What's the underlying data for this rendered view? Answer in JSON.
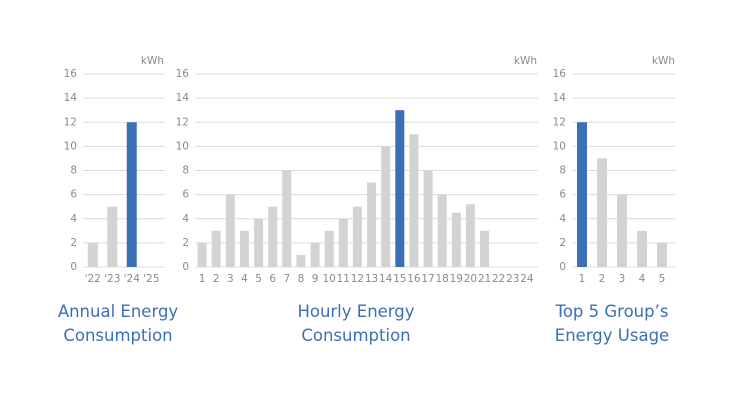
{
  "chart_data": [
    {
      "type": "bar",
      "title": "Annual Energy Consumption",
      "unit": "kWh",
      "categories": [
        "'22",
        "'23",
        "'24",
        "'25"
      ],
      "values": [
        2,
        5,
        12,
        null
      ],
      "colors": [
        "#d3d3d3",
        "#d3d3d3",
        "#3b6fb6",
        "#d3d3d3"
      ],
      "ylim": [
        0,
        16
      ],
      "yticks": [
        0,
        2,
        4,
        6,
        8,
        10,
        12,
        14,
        16
      ],
      "grid": true
    },
    {
      "type": "bar",
      "title": "Hourly Energy Consumption",
      "unit": "kWh",
      "categories": [
        "1",
        "2",
        "3",
        "4",
        "5",
        "6",
        "7",
        "8",
        "9",
        "10",
        "11",
        "12",
        "13",
        "14",
        "15",
        "16",
        "17",
        "18",
        "19",
        "20",
        "21",
        "22",
        "23",
        "24"
      ],
      "values": [
        2,
        3,
        6,
        3,
        4,
        5,
        8,
        1,
        2,
        3,
        4,
        5,
        7,
        10,
        13,
        11,
        8,
        6,
        4.5,
        5.2,
        3,
        null,
        null,
        null
      ],
      "colors": [
        "#d3d3d3",
        "#d3d3d3",
        "#d3d3d3",
        "#d3d3d3",
        "#d3d3d3",
        "#d3d3d3",
        "#d3d3d3",
        "#d3d3d3",
        "#d3d3d3",
        "#d3d3d3",
        "#d3d3d3",
        "#d3d3d3",
        "#d3d3d3",
        "#d3d3d3",
        "#3b6fb6",
        "#d3d3d3",
        "#d3d3d3",
        "#d3d3d3",
        "#d3d3d3",
        "#d3d3d3",
        "#d3d3d3",
        "#d3d3d3",
        "#d3d3d3",
        "#d3d3d3"
      ],
      "ylim": [
        0,
        16
      ],
      "yticks": [
        0,
        2,
        4,
        6,
        8,
        10,
        12,
        14,
        16
      ],
      "grid": true
    },
    {
      "type": "bar",
      "title": "Top 5 Group’s Energy Usage",
      "unit": "kWh",
      "categories": [
        "1",
        "2",
        "3",
        "4",
        "5"
      ],
      "values": [
        12,
        9,
        6,
        3,
        2
      ],
      "colors": [
        "#3b6fb6",
        "#d3d3d3",
        "#d3d3d3",
        "#d3d3d3",
        "#d3d3d3"
      ],
      "ylim": [
        0,
        16
      ],
      "yticks": [
        0,
        2,
        4,
        6,
        8,
        10,
        12,
        14,
        16
      ],
      "grid": true
    }
  ]
}
